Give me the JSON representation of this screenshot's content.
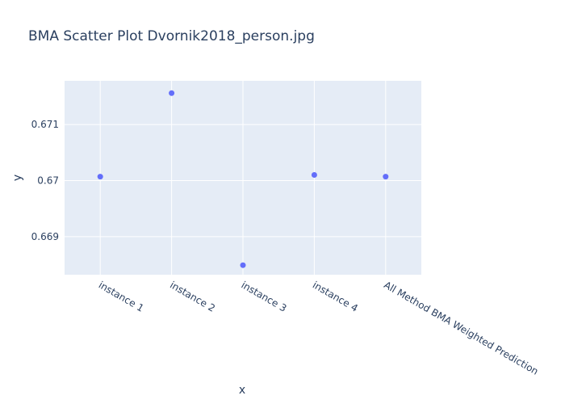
{
  "chart_data": {
    "type": "scatter",
    "title": "BMA Scatter Plot Dvornik2018_person.jpg",
    "xlabel": "x",
    "ylabel": "y",
    "categories": [
      "instance 1",
      "instance 2",
      "instance 3",
      "instance 4",
      "All Method BMA Weighted Prediction"
    ],
    "values": [
      0.67007,
      0.67156,
      0.66849,
      0.6701,
      0.67007
    ],
    "ylim": [
      0.66832,
      0.67178
    ],
    "yticks": [
      0.669,
      0.67,
      0.671
    ],
    "ytick_labels": [
      "0.669",
      "0.67",
      "0.671"
    ],
    "grid": true,
    "legend": "none",
    "colors": {
      "marker": "#636efa",
      "plot_bg": "#e5ecf6",
      "grid": "#ffffff",
      "text": "#2a3f5f"
    }
  }
}
